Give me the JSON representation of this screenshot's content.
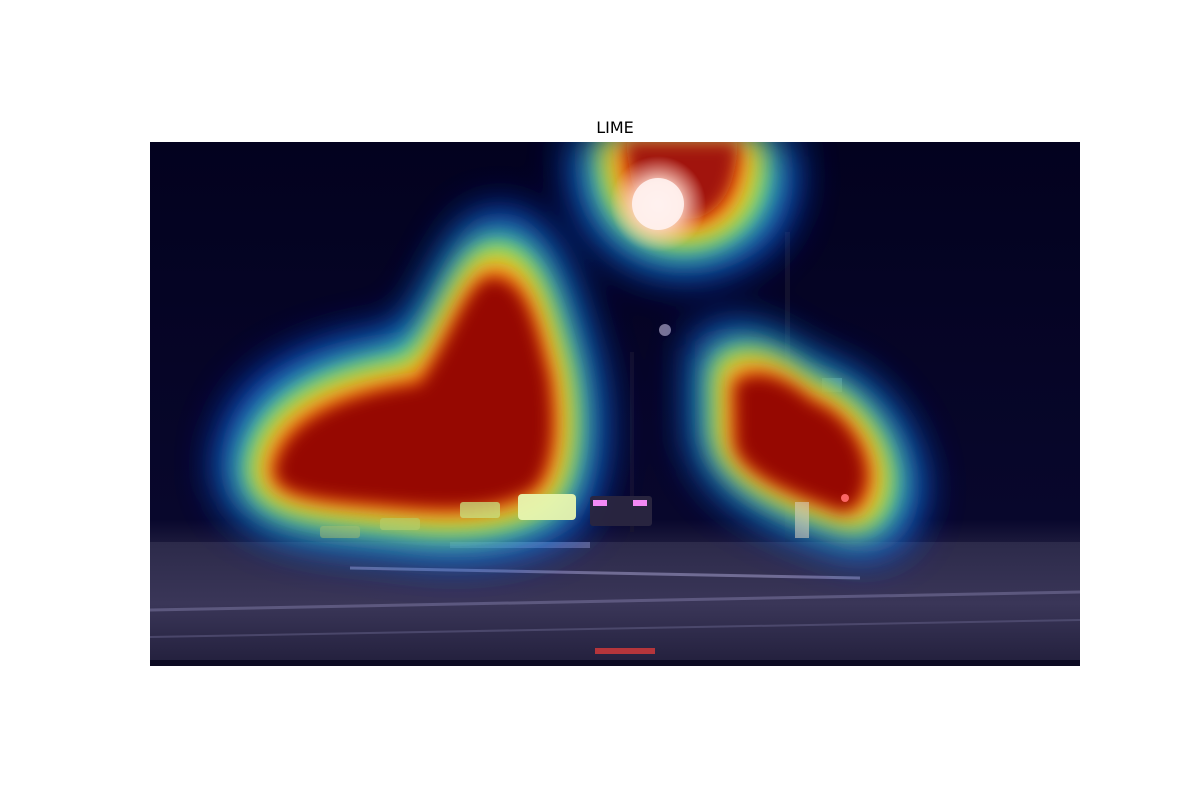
{
  "figure": {
    "title": "LIME",
    "image_description_icon": "lime-heatmap-night-road-image",
    "colors": {
      "background": "#ffffff",
      "scene_dark": "#05042a",
      "heat_hot": "#8b0000",
      "heat_warm": "#ff3300",
      "heat_mid": "#ffff00",
      "heat_cool": "#00ffcc",
      "heat_low": "#0000ff"
    }
  }
}
